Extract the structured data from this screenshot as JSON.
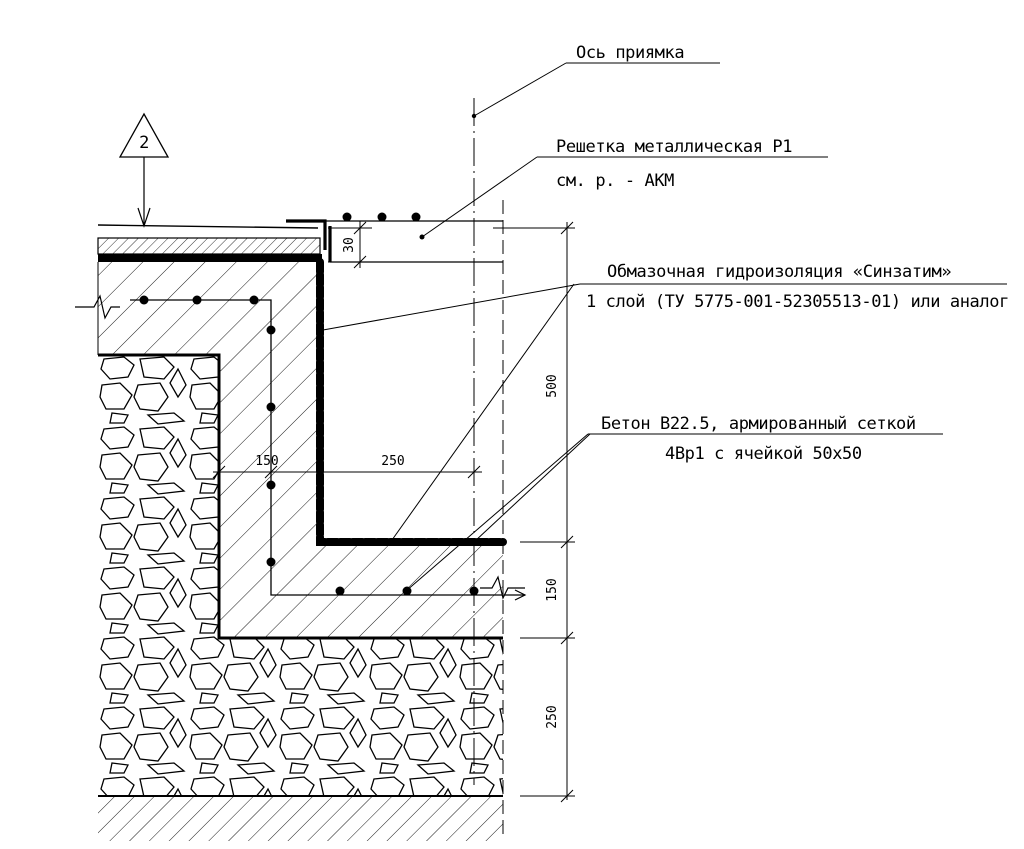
{
  "annotations": {
    "axis_label": "Ось приямка",
    "grate_line1": "Решетка металлическая Р1",
    "grate_line2": "см. р. - АКМ",
    "waterproof_line1": "Обмазочная гидроизоляция  «Синзатим»",
    "waterproof_line2": "1 слой (ТУ 5775-001-52305513-01) или аналог",
    "concrete_line1": "Бетон В22.5, армированный сеткой",
    "concrete_line2": "4Вр1 с ячейкой 50x50"
  },
  "section_marker": {
    "label": "2"
  },
  "dimensions": {
    "d30": "30",
    "d500": "500",
    "d150_right": "150",
    "d250_right": "250",
    "d150_inner": "150",
    "d250_inner": "250"
  },
  "colors": {
    "line": "#000000",
    "background": "#ffffff"
  }
}
